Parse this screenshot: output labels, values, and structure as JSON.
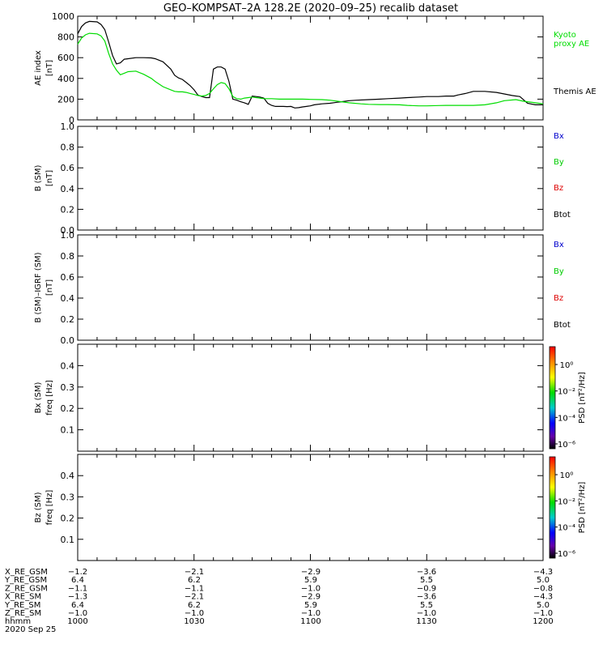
{
  "title": "GEO–KOMPSAT–2A 128.2E (2020–09–25) recalib dataset",
  "time_axis": {
    "range_hhmm": [
      "1000",
      "1200"
    ],
    "major_ticks_hhmm": [
      "1000",
      "1030",
      "1100",
      "1130",
      "1200"
    ]
  },
  "panels": [
    {
      "id": "ae",
      "ylabel": [
        "AE index",
        "[nT]"
      ],
      "ylim": [
        0,
        1000
      ],
      "yticks": [
        "0",
        "200",
        "400",
        "600",
        "800",
        "1000"
      ],
      "legend": [
        {
          "label": "Kyoto\nproxy AE",
          "color": "#00dd00"
        },
        {
          "label": "Themis AE",
          "color": "#000000"
        }
      ]
    },
    {
      "id": "b_sm",
      "ylabel": [
        "B (SM)",
        "[nT]"
      ],
      "ylim": [
        0,
        1.0
      ],
      "yticks": [
        "0.0",
        "0.2",
        "0.4",
        "0.6",
        "0.8",
        "1.0"
      ],
      "legend": [
        {
          "label": "Bx",
          "color": "#0000cc"
        },
        {
          "label": "By",
          "color": "#00cc00"
        },
        {
          "label": "Bz",
          "color": "#dd0000"
        },
        {
          "label": "Btot",
          "color": "#000000"
        }
      ]
    },
    {
      "id": "b_sm_igrf",
      "ylabel": [
        "B (SM)–IGRF (SM)",
        "[nT]"
      ],
      "ylim": [
        0,
        1.0
      ],
      "yticks": [
        "0.0",
        "0.2",
        "0.4",
        "0.6",
        "0.8",
        "1.0"
      ],
      "legend": [
        {
          "label": "Bx",
          "color": "#0000cc"
        },
        {
          "label": "By",
          "color": "#00cc00"
        },
        {
          "label": "Bz",
          "color": "#dd0000"
        },
        {
          "label": "Btot",
          "color": "#000000"
        }
      ]
    },
    {
      "id": "bx_spec",
      "ylabel": [
        "Bx (SM)",
        "freq [Hz]"
      ],
      "ylim": [
        0,
        0.5
      ],
      "yticks": [
        "0.1",
        "0.2",
        "0.3",
        "0.4"
      ],
      "colorbar": {
        "label": "PSD [nT²/Hz]",
        "ticks": [
          "10⁰",
          "10⁻²",
          "10⁻⁴",
          "10⁻⁶"
        ]
      }
    },
    {
      "id": "bz_spec",
      "ylabel": [
        "Bz (SM)",
        "freq [Hz]"
      ],
      "ylim": [
        0,
        0.5
      ],
      "yticks": [
        "0.1",
        "0.2",
        "0.3",
        "0.4"
      ],
      "colorbar": {
        "label": "PSD [nT²/Hz]",
        "ticks": [
          "10⁰",
          "10⁻²",
          "10⁻⁴",
          "10⁻⁶"
        ]
      }
    }
  ],
  "orbit_table": {
    "rows": [
      {
        "label": "X_RE_GSM",
        "values": [
          "−1.2",
          "−2.1",
          "−2.9",
          "−3.6",
          "−4.3"
        ]
      },
      {
        "label": "Y_RE_GSM",
        "values": [
          "6.4",
          "6.2",
          "5.9",
          "5.5",
          "5.0"
        ]
      },
      {
        "label": "Z_RE_GSM",
        "values": [
          "−1.1",
          "−1.1",
          "−1.0",
          "−0.9",
          "−0.8"
        ]
      },
      {
        "label": "X_RE_SM",
        "values": [
          "−1.3",
          "−2.1",
          "−2.9",
          "−3.6",
          "−4.3"
        ]
      },
      {
        "label": "Y_RE_SM",
        "values": [
          "6.4",
          "6.2",
          "5.9",
          "5.5",
          "5.0"
        ]
      },
      {
        "label": "Z_RE_SM",
        "values": [
          "−1.0",
          "−1.0",
          "−1.0",
          "−1.0",
          "−1.0"
        ]
      },
      {
        "label": "hhmm",
        "values": [
          "1000",
          "1030",
          "1100",
          "1130",
          "1200"
        ]
      }
    ],
    "date": "2020 Sep 25"
  },
  "chart_data": {
    "type": "line",
    "title": "GEO–KOMPSAT–2A 128.2E (2020–09–25) recalib dataset",
    "xlabel": "hhmm",
    "ylabel": "AE index [nT]",
    "xlim": [
      "1000",
      "1200"
    ],
    "ylim": [
      0,
      1000
    ],
    "grid": false,
    "legend_position": "right",
    "series": [
      {
        "name": "Themis AE",
        "color": "#000000",
        "x": [
          "1000",
          "1001",
          "1002",
          "1003",
          "1005",
          "1006",
          "1007",
          "1008",
          "1009",
          "1010",
          "1011",
          "1012",
          "1013",
          "1015",
          "1017",
          "1019",
          "1020",
          "1022",
          "1024",
          "1025",
          "1026",
          "1027",
          "1028",
          "1029",
          "1030",
          "1031",
          "1032",
          "1033",
          "1034",
          "1035",
          "1036",
          "1037",
          "1038",
          "1039",
          "1040",
          "1041",
          "1042",
          "1043",
          "1044",
          "1045",
          "1046",
          "1047",
          "1048",
          "1049",
          "1050",
          "1051",
          "1052",
          "1053",
          "1054",
          "1055",
          "1056",
          "1057",
          "1058",
          "1059",
          "1100",
          "1101",
          "1103",
          "1105",
          "1107",
          "1108",
          "1110",
          "1112",
          "1115",
          "1118",
          "1120",
          "1123",
          "1125",
          "1128",
          "1130",
          "1133",
          "1135",
          "1137",
          "1138",
          "1140",
          "1142",
          "1145",
          "1148",
          "1150",
          "1152",
          "1154",
          "1156",
          "1158",
          "1200"
        ],
        "values": [
          830,
          900,
          935,
          950,
          945,
          920,
          870,
          750,
          620,
          540,
          550,
          585,
          590,
          600,
          600,
          598,
          590,
          560,
          490,
          430,
          405,
          390,
          360,
          330,
          290,
          240,
          225,
          215,
          215,
          490,
          510,
          510,
          490,
          370,
          200,
          190,
          175,
          165,
          150,
          230,
          225,
          220,
          210,
          160,
          140,
          130,
          130,
          130,
          128,
          130,
          115,
          118,
          125,
          130,
          135,
          145,
          155,
          160,
          170,
          175,
          185,
          190,
          195,
          200,
          205,
          210,
          215,
          220,
          225,
          225,
          230,
          230,
          240,
          255,
          275,
          275,
          265,
          250,
          235,
          225,
          160,
          145,
          145
        ]
      },
      {
        "name": "Kyoto proxy AE",
        "color": "#00dd00",
        "x": [
          "1000",
          "1001",
          "1002",
          "1003",
          "1005",
          "1006",
          "1007",
          "1008",
          "1009",
          "1010",
          "1011",
          "1012",
          "1013",
          "1015",
          "1017",
          "1019",
          "1020",
          "1022",
          "1024",
          "1025",
          "1026",
          "1027",
          "1028",
          "1029",
          "1030",
          "1031",
          "1032",
          "1033",
          "1034",
          "1035",
          "1036",
          "1037",
          "1038",
          "1039",
          "1040",
          "1041",
          "1042",
          "1043",
          "1044",
          "1045",
          "1046",
          "1047",
          "1048",
          "1050",
          "1052",
          "1055",
          "1058",
          "1100",
          "1103",
          "1105",
          "1108",
          "1110",
          "1113",
          "1115",
          "1118",
          "1120",
          "1123",
          "1125",
          "1128",
          "1130",
          "1133",
          "1135",
          "1138",
          "1140",
          "1142",
          "1145",
          "1148",
          "1150",
          "1153",
          "1155",
          "1158",
          "1200"
        ],
        "values": [
          730,
          790,
          820,
          835,
          830,
          810,
          760,
          640,
          540,
          480,
          435,
          450,
          465,
          470,
          440,
          400,
          370,
          320,
          290,
          275,
          270,
          270,
          265,
          255,
          245,
          235,
          230,
          235,
          255,
          300,
          340,
          360,
          350,
          300,
          225,
          205,
          200,
          210,
          215,
          220,
          215,
          210,
          205,
          205,
          200,
          200,
          200,
          198,
          195,
          190,
          175,
          165,
          155,
          150,
          148,
          148,
          145,
          140,
          135,
          135,
          138,
          140,
          140,
          140,
          140,
          145,
          165,
          185,
          195,
          180,
          165,
          155
        ]
      }
    ]
  }
}
